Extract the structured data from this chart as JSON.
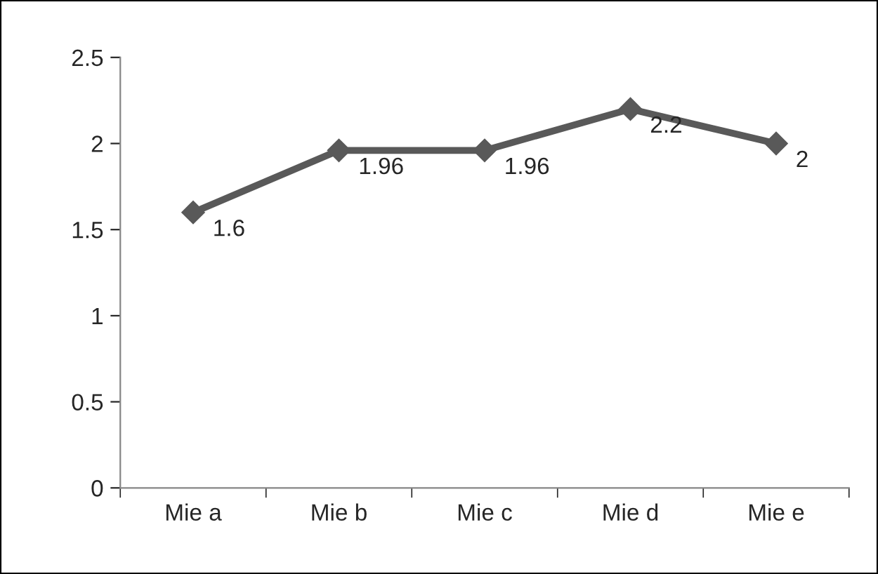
{
  "chart_data": {
    "type": "line",
    "categories": [
      "Mie a",
      "Mie b",
      "Mie c",
      "Mie d",
      "Mie e"
    ],
    "series": [
      {
        "color": "#595959",
        "values": [
          1.6,
          1.96,
          1.96,
          2.2,
          2
        ]
      }
    ],
    "ylim": [
      0,
      2.5
    ],
    "yticks": [
      0,
      0.5,
      1,
      1.5,
      2,
      2.5
    ],
    "grid": false,
    "marker": "diamond",
    "line_style": "solid",
    "data_labels": true
  }
}
